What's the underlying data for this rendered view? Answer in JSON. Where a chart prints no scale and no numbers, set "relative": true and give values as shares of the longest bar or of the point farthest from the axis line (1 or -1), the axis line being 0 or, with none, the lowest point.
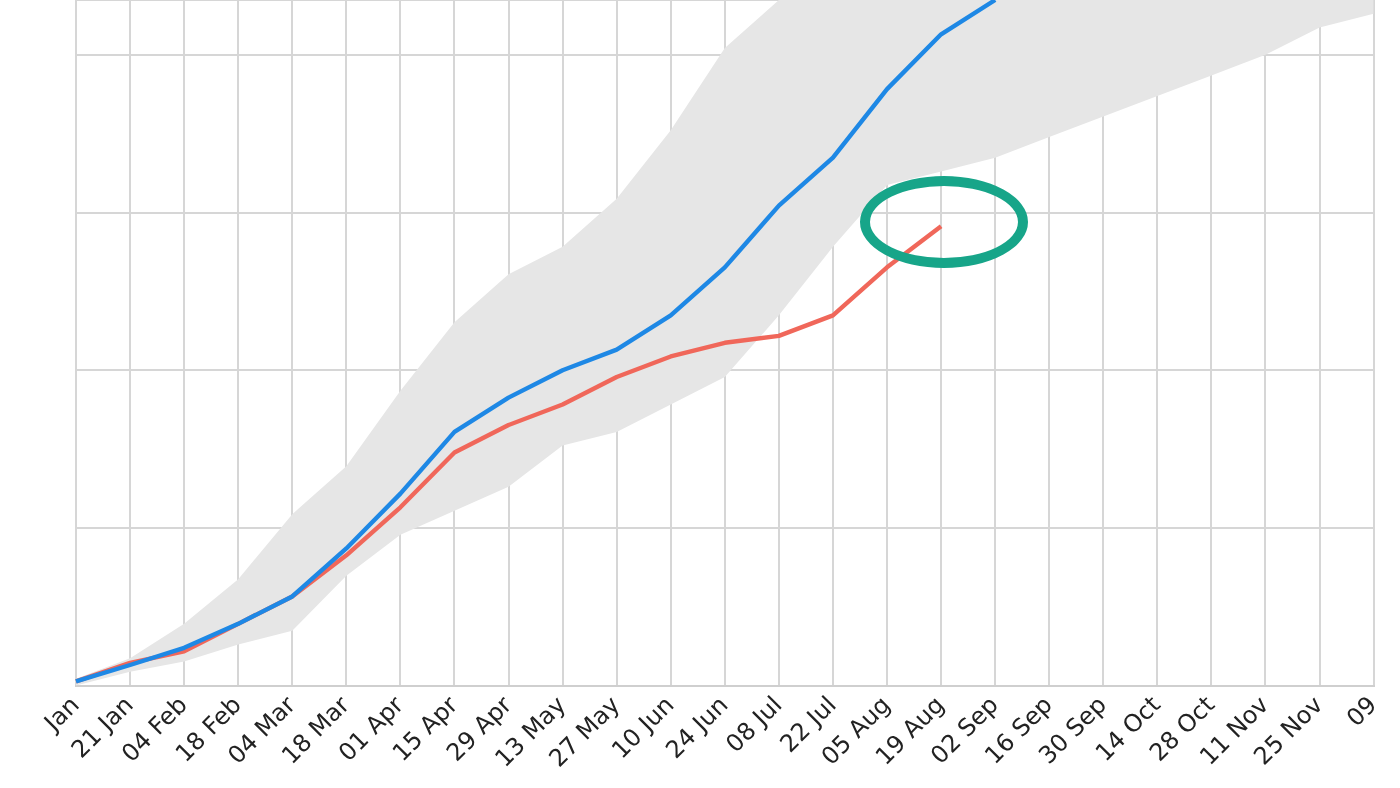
{
  "chart_data": {
    "type": "line",
    "relative": true,
    "grid": true,
    "legend": false,
    "marker": "none",
    "line_style": "solid",
    "categories": [
      "Jan",
      "21 Jan",
      "04 Feb",
      "18 Feb",
      "04 Mar",
      "18 Mar",
      "01 Apr",
      "15 Apr",
      "29 Apr",
      "13 May",
      "27 May",
      "10 Jun",
      "24 Jun",
      "08 Jul",
      "22 Jul",
      "05 Aug",
      "19 Aug",
      "02 Sep",
      "16 Sep",
      "30 Sep",
      "14 Oct",
      "28 Oct",
      "11 Nov",
      "25 Nov",
      "09"
    ],
    "series": [
      {
        "color": "#1e88e5",
        "values": [
          0.006,
          0.03,
          0.055,
          0.09,
          0.13,
          0.2,
          0.28,
          0.37,
          0.42,
          0.46,
          0.49,
          0.54,
          0.61,
          0.7,
          0.77,
          0.87,
          0.95,
          1,
          null,
          null,
          null,
          null,
          null,
          null,
          null
        ],
        "lower": [
          0,
          0.02,
          0.035,
          0.06,
          0.08,
          0.16,
          0.22,
          0.255,
          0.29,
          0.35,
          0.37,
          0.41,
          0.45,
          0.54,
          0.64,
          0.73,
          0.75,
          0.77,
          0.8,
          0.83,
          0.86,
          0.89,
          0.92,
          0.96,
          0.98
        ],
        "upper": [
          0.01,
          0.04,
          0.09,
          0.155,
          0.25,
          0.32,
          0.43,
          0.53,
          0.6,
          0.64,
          0.71,
          0.81,
          0.93,
          1,
          1,
          1,
          1,
          1,
          1,
          1,
          1,
          1,
          1,
          1,
          1
        ]
      },
      {
        "color": "#f0675a",
        "values": [
          0.006,
          0.033,
          0.05,
          0.09,
          0.13,
          0.19,
          0.26,
          0.34,
          0.38,
          0.41,
          0.45,
          0.48,
          0.5,
          0.51,
          0.54,
          0.61,
          0.67,
          null,
          null,
          null,
          null,
          null,
          null,
          null,
          null
        ]
      }
    ]
  }
}
